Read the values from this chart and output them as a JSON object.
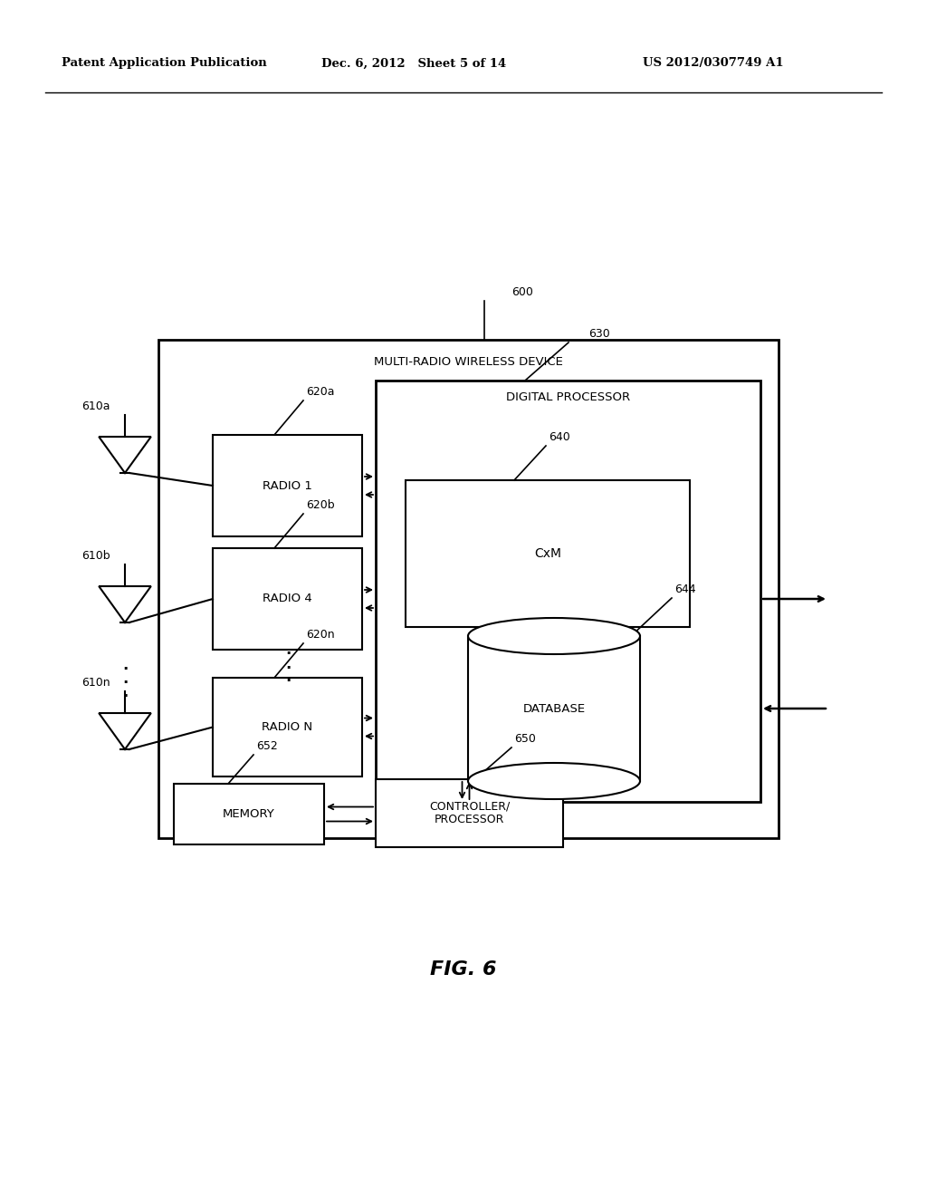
{
  "header_left": "Patent Application Publication",
  "header_mid": "Dec. 6, 2012   Sheet 5 of 14",
  "header_right": "US 2012/0307749 A1",
  "fig_label": "FIG. 6",
  "main_box_label": "MULTI-RADIO WIRELESS DEVICE",
  "main_box_label_ref": "600",
  "dp_label": "DIGITAL PROCESSOR",
  "dp_ref": "630",
  "cxm_label": "CxM",
  "cxm_ref": "640",
  "db_label": "DATABASE",
  "db_ref": "644",
  "radio1_label": "RADIO 1",
  "radio1_ref": "620a",
  "radio4_label": "RADIO 4",
  "radio4_ref": "620b",
  "radion_label": "RADIO N",
  "radion_ref": "620n",
  "ant1_ref": "610a",
  "ant2_ref": "610b",
  "antn_ref": "610n",
  "mem_label": "MEMORY",
  "mem_ref": "652",
  "ctrl_label": "CONTROLLER/\nPROCESSOR",
  "ctrl_ref": "650",
  "bg_color": "#ffffff",
  "line_color": "#000000"
}
